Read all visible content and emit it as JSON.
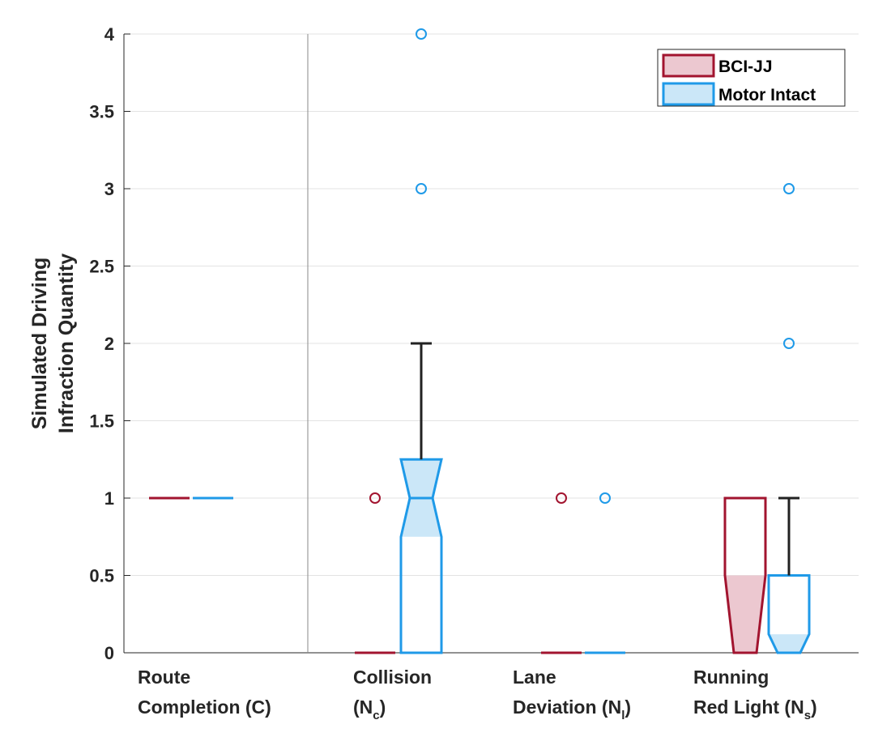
{
  "chart_data": {
    "type": "box",
    "title": "",
    "ylabel_lines": [
      "Simulated Driving",
      "Infraction Quantity"
    ],
    "ylim": [
      0,
      4
    ],
    "yticks": [
      0,
      0.5,
      1,
      1.5,
      2,
      2.5,
      3,
      3.5,
      4
    ],
    "ytick_labels": [
      "0",
      "0.5",
      "1",
      "1.5",
      "2",
      "2.5",
      "3",
      "3.5",
      "4"
    ],
    "grid": "horizontal",
    "legend_position": "top-right",
    "categories": [
      {
        "line1": "Route",
        "line2": "Completion (C)",
        "line2_sub": "",
        "line2_end": ""
      },
      {
        "line1": "Collision",
        "line2": "(N",
        "line2_sub": "c",
        "line2_end": ")"
      },
      {
        "line1": "Lane",
        "line2": "Deviation (N",
        "line2_sub": "l",
        "line2_end": ")"
      },
      {
        "line1": "Running",
        "line2": "Red Light (N",
        "line2_sub": "s",
        "line2_end": ")"
      }
    ],
    "series": [
      {
        "name": "BCI-JJ",
        "edge_color": "#a2142f",
        "fill_color": "#ecc8d0",
        "boxes": [
          {
            "q1": 1,
            "median": 1,
            "q3": 1,
            "whisker_low": 1,
            "whisker_high": 1,
            "notch_low": 1,
            "notch_high": 1,
            "outliers": []
          },
          {
            "q1": 0,
            "median": 0,
            "q3": 0,
            "whisker_low": 0,
            "whisker_high": 0,
            "notch_low": 0,
            "notch_high": 0,
            "outliers": [
              1
            ]
          },
          {
            "q1": 0,
            "median": 0,
            "q3": 0,
            "whisker_low": 0,
            "whisker_high": 0,
            "notch_low": 0,
            "notch_high": 0,
            "outliers": [
              1
            ]
          },
          {
            "q1": 0,
            "median": 0,
            "q3": 1,
            "whisker_low": 0,
            "whisker_high": 1,
            "notch_low": 0,
            "notch_high": 0.5,
            "outliers": []
          }
        ]
      },
      {
        "name": "Motor Intact",
        "edge_color": "#1f9ae8",
        "fill_color": "#cbe7f8",
        "boxes": [
          {
            "q1": 1,
            "median": 1,
            "q3": 1,
            "whisker_low": 1,
            "whisker_high": 1,
            "notch_low": 1,
            "notch_high": 1,
            "outliers": []
          },
          {
            "q1": 0,
            "median": 1,
            "q3": 1.25,
            "whisker_low": 0,
            "whisker_high": 2,
            "notch_low": 0.75,
            "notch_high": 1.25,
            "outliers": [
              3,
              4
            ]
          },
          {
            "q1": 0,
            "median": 0,
            "q3": 0,
            "whisker_low": 0,
            "whisker_high": 0,
            "notch_low": 0,
            "notch_high": 0,
            "outliers": [
              1
            ]
          },
          {
            "q1": 0,
            "median": 0,
            "q3": 0.5,
            "whisker_low": 0,
            "whisker_high": 1,
            "notch_low": 0,
            "notch_high": 0.12,
            "outliers": [
              2,
              3
            ]
          }
        ]
      }
    ]
  }
}
